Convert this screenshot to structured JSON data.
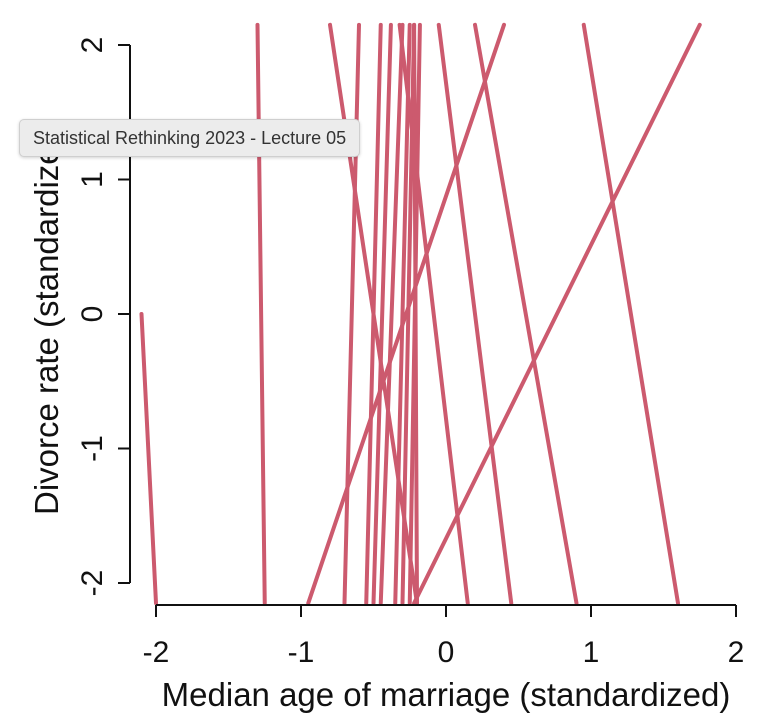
{
  "tooltip": {
    "text": "Statistical Rethinking 2023 - Lecture 05"
  },
  "chart_data": {
    "type": "line",
    "title": "",
    "xlabel": "Median age of marriage (standardized)",
    "ylabel": "Divorce rate (standardized)",
    "xlim": [
      -2.2,
      2.2
    ],
    "ylim": [
      -2.15,
      2.15
    ],
    "xticks": [
      -2,
      -1,
      0,
      1,
      2
    ],
    "yticks": [
      -2,
      -1,
      0,
      1,
      2
    ],
    "line_color": "#cc5a6e",
    "grid": false,
    "lines": [
      {
        "x": [
          -2.1,
          -2.0
        ],
        "y": [
          0.0,
          -2.15
        ]
      },
      {
        "x": [
          -1.25,
          -1.3
        ],
        "y": [
          -2.15,
          2.15
        ]
      },
      {
        "x": [
          -0.95,
          0.4
        ],
        "y": [
          -2.15,
          2.15
        ]
      },
      {
        "x": [
          -0.7,
          -0.6
        ],
        "y": [
          -2.15,
          2.15
        ]
      },
      {
        "x": [
          -0.55,
          -0.45
        ],
        "y": [
          -2.15,
          2.15
        ]
      },
      {
        "x": [
          -0.5,
          -0.38
        ],
        "y": [
          -2.15,
          2.15
        ]
      },
      {
        "x": [
          -0.45,
          -0.3
        ],
        "y": [
          -2.15,
          2.15
        ]
      },
      {
        "x": [
          -0.35,
          -0.25
        ],
        "y": [
          -2.15,
          2.15
        ]
      },
      {
        "x": [
          -0.3,
          -0.22
        ],
        "y": [
          -2.15,
          2.15
        ]
      },
      {
        "x": [
          -0.25,
          -0.18
        ],
        "y": [
          -2.15,
          2.15
        ]
      },
      {
        "x": [
          -0.2,
          -0.22
        ],
        "y": [
          -2.15,
          2.15
        ]
      },
      {
        "x": [
          -0.8,
          -0.2
        ],
        "y": [
          2.15,
          -2.15
        ]
      },
      {
        "x": [
          -0.32,
          0.15
        ],
        "y": [
          2.15,
          -2.15
        ]
      },
      {
        "x": [
          -0.05,
          0.45
        ],
        "y": [
          2.15,
          -2.15
        ]
      },
      {
        "x": [
          0.2,
          0.9
        ],
        "y": [
          2.15,
          -2.15
        ]
      },
      {
        "x": [
          0.95,
          1.6
        ],
        "y": [
          2.15,
          -2.15
        ]
      },
      {
        "x": [
          -0.22,
          1.75
        ],
        "y": [
          -2.15,
          2.15
        ]
      }
    ]
  }
}
